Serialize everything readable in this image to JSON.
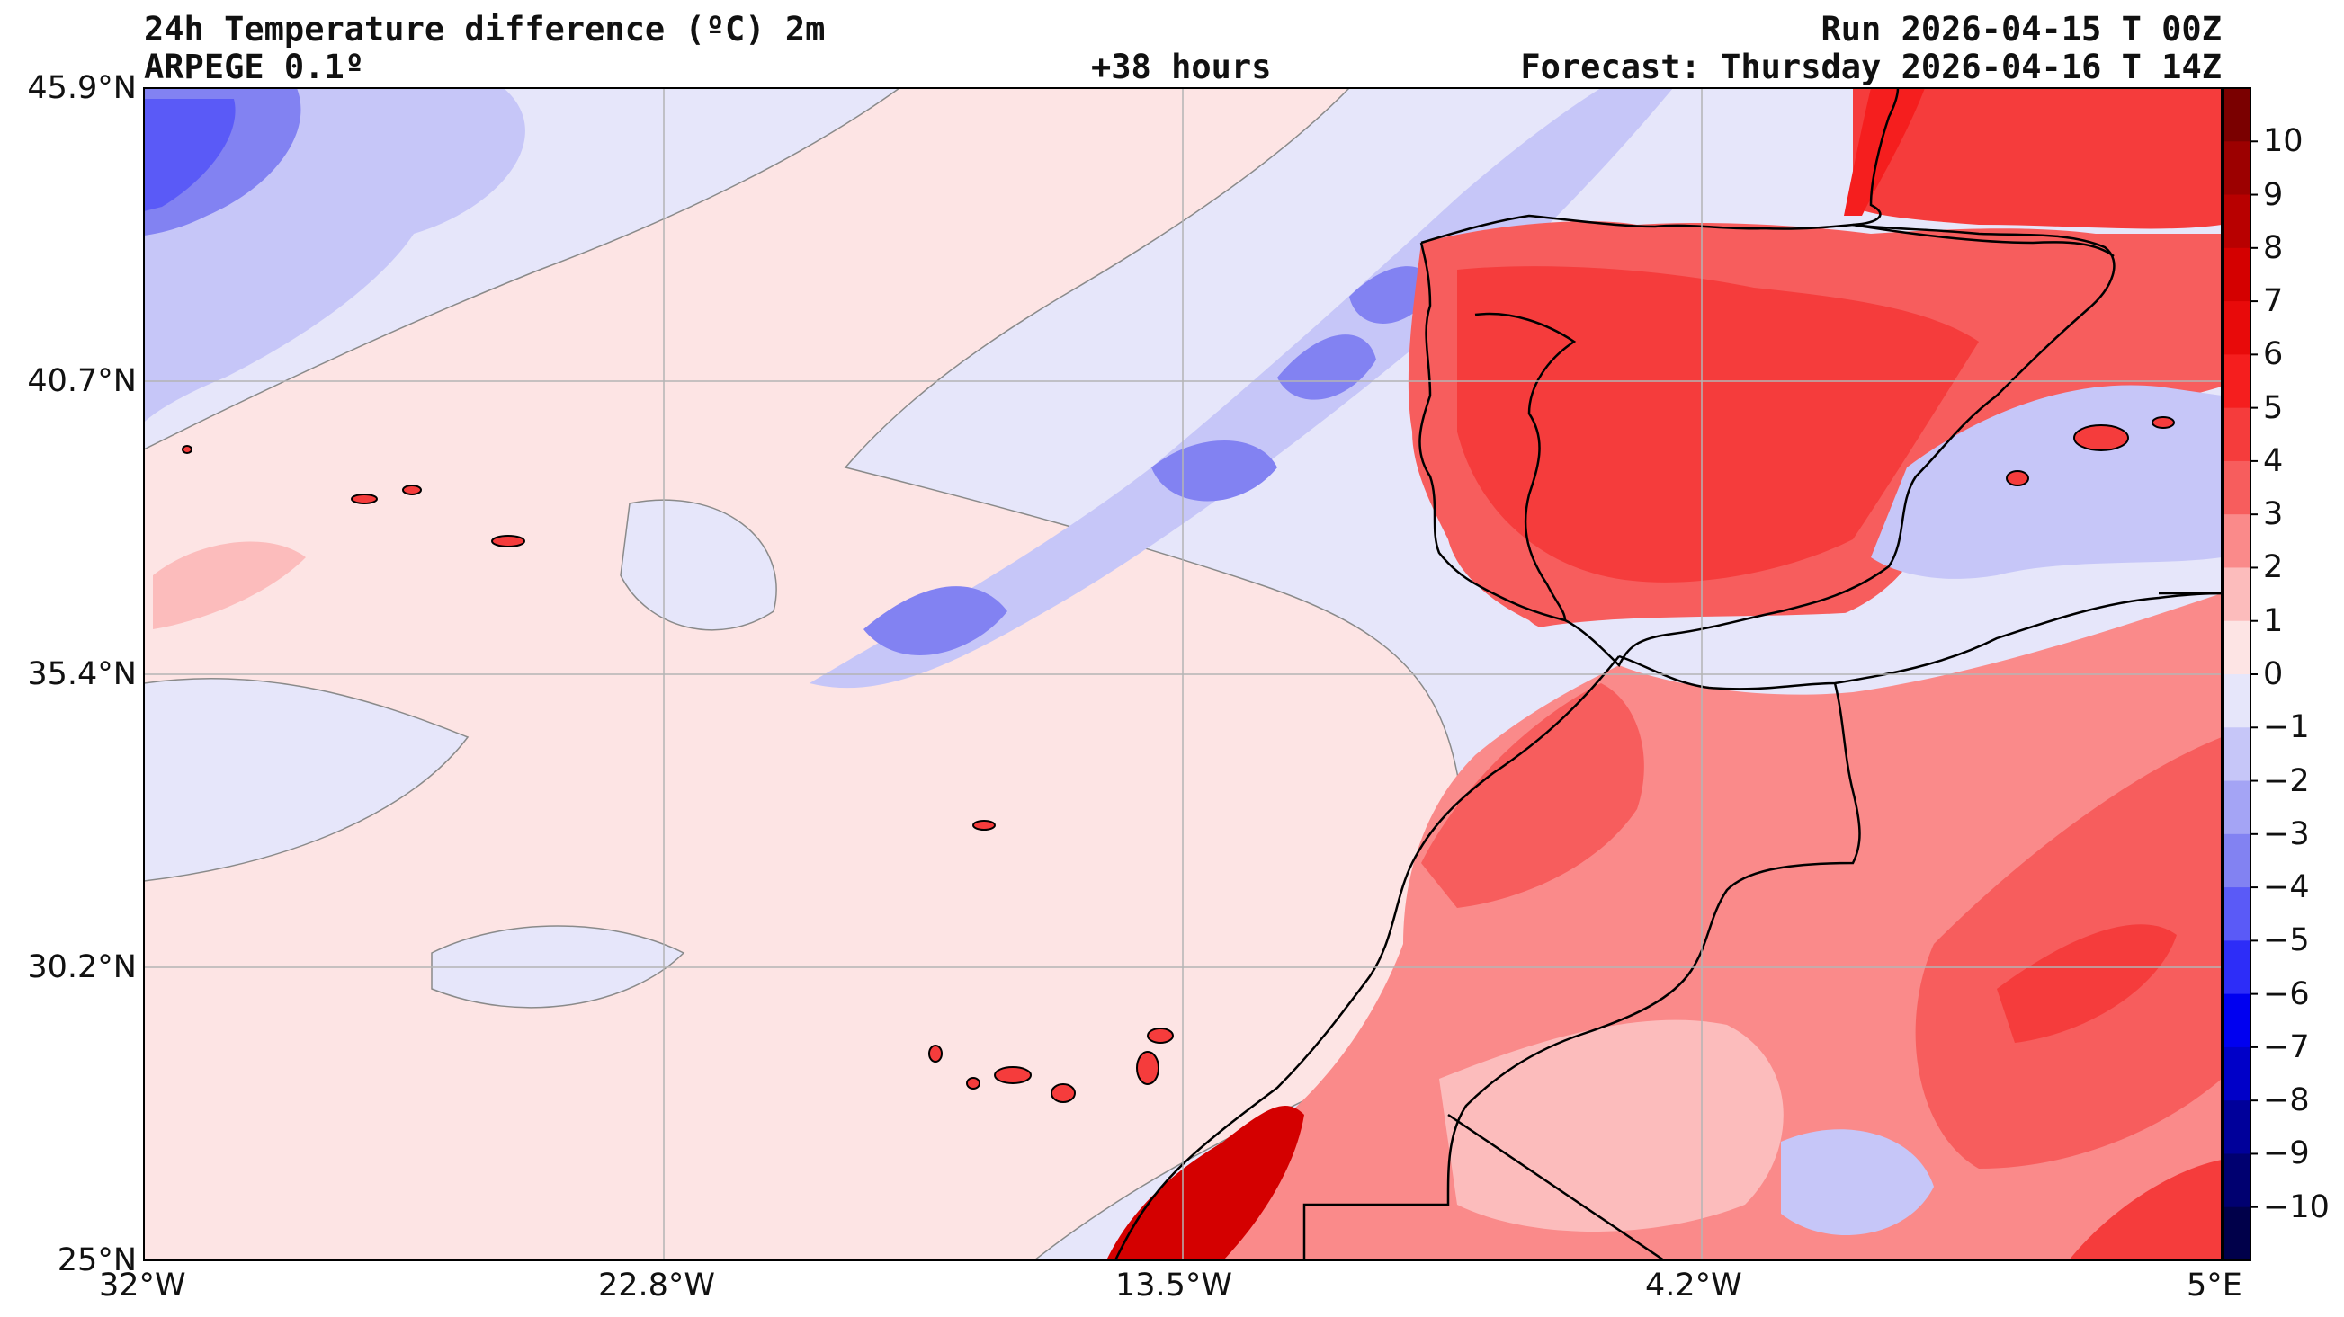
{
  "header": {
    "title_left_1": "24h Temperature difference (ºC) 2m",
    "title_left_2": "ARPEGE 0.1º",
    "title_center": "+38 hours",
    "title_right_1": "Run 2026-04-15 T 00Z",
    "title_right_2": "Forecast: Thursday 2026-04-16 T 14Z"
  },
  "axes": {
    "lat_labels": [
      "45.9°N",
      "40.7°N",
      "35.4°N",
      "30.2°N",
      "25°N"
    ],
    "lon_labels": [
      "32°W",
      "22.8°W",
      "13.5°W",
      "4.2°W",
      "5°E"
    ]
  },
  "colorbar": {
    "labels": [
      "10",
      "9",
      "8",
      "7",
      "6",
      "5",
      "4",
      "3",
      "2",
      "1",
      "0",
      "−1",
      "−2",
      "−3",
      "−4",
      "−5",
      "−6",
      "−7",
      "−8",
      "−9",
      "−10"
    ],
    "levels_top_to_bottom": [
      11,
      10,
      9,
      8,
      7,
      6,
      5,
      4,
      3,
      2,
      1,
      0,
      -1,
      -2,
      -3,
      -4,
      -5,
      -6,
      -7,
      -8,
      -9,
      -10,
      -11
    ],
    "colors_top_to_bottom": [
      "#7a0000",
      "#9c0000",
      "#b80000",
      "#d40000",
      "#e80a0a",
      "#f51e1e",
      "#f53c3c",
      "#f75d5d",
      "#fa8a8a",
      "#fcbcbc",
      "#fde4e4",
      "#e6e6fa",
      "#c6c6f8",
      "#a4a4f5",
      "#8282f2",
      "#5a5af7",
      "#2d2df8",
      "#0000f0",
      "#0000c8",
      "#00009a",
      "#000070",
      "#00004a"
    ]
  },
  "palette": {
    "ocean_pos": "#fde4e4",
    "ocean_neg": "#e6e6fa",
    "cool1": "#c6c6f8",
    "cool2": "#a4a4f5",
    "cool3": "#8282f2",
    "cool4": "#5a5af7",
    "warm1": "#fcbcbc",
    "warm2": "#fa8a8a",
    "warm3": "#f75d5d",
    "warm4": "#f53c3c",
    "warm5": "#f51e1e",
    "warm6": "#d40000",
    "coast": "#000000",
    "grid": "#b4b4b4"
  }
}
